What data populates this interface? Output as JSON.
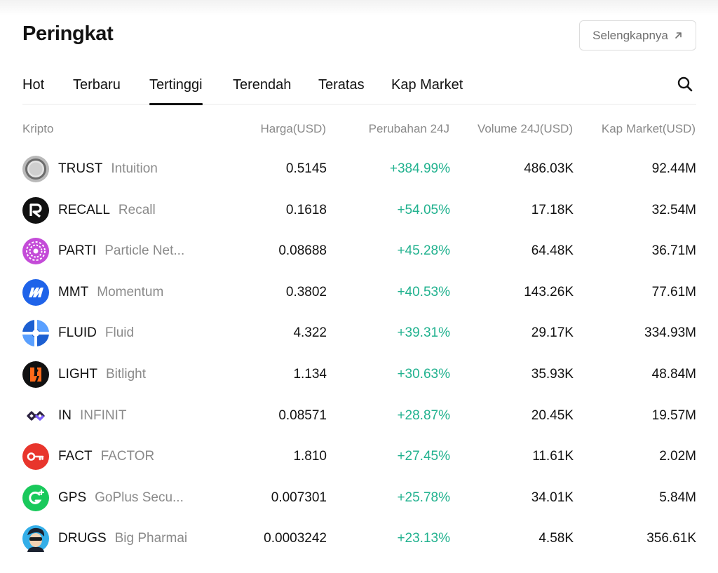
{
  "title": "Peringkat",
  "more_button": "Selengkapnya",
  "tabs": [
    "Hot",
    "Terbaru",
    "Tertinggi",
    "Terendah",
    "Teratas",
    "Kap Market"
  ],
  "active_tab": "Tertinggi",
  "headers": {
    "asset": "Kripto",
    "price": "Harga(USD)",
    "change": "Perubahan 24J",
    "volume": "Volume 24J(USD)",
    "market_cap": "Kap Market(USD)"
  },
  "colors": {
    "positive": "#22b28f",
    "text": "#121212",
    "muted": "#8a8a8a"
  },
  "rows": [
    {
      "symbol": "TRUST",
      "name": "Intuition",
      "price": "0.5145",
      "change": "+384.99%",
      "volume": "486.03K",
      "market_cap": "92.44M",
      "icon": "trust-logo-icon"
    },
    {
      "symbol": "RECALL",
      "name": "Recall",
      "price": "0.1618",
      "change": "+54.05%",
      "volume": "17.18K",
      "market_cap": "32.54M",
      "icon": "recall-logo-icon"
    },
    {
      "symbol": "PARTI",
      "name": "Particle Net...",
      "price": "0.08688",
      "change": "+45.28%",
      "volume": "64.48K",
      "market_cap": "36.71M",
      "icon": "parti-logo-icon"
    },
    {
      "symbol": "MMT",
      "name": "Momentum",
      "price": "0.3802",
      "change": "+40.53%",
      "volume": "143.26K",
      "market_cap": "77.61M",
      "icon": "mmt-logo-icon"
    },
    {
      "symbol": "FLUID",
      "name": "Fluid",
      "price": "4.322",
      "change": "+39.31%",
      "volume": "29.17K",
      "market_cap": "334.93M",
      "icon": "fluid-logo-icon"
    },
    {
      "symbol": "LIGHT",
      "name": "Bitlight",
      "price": "1.134",
      "change": "+30.63%",
      "volume": "35.93K",
      "market_cap": "48.84M",
      "icon": "light-logo-icon"
    },
    {
      "symbol": "IN",
      "name": "INFINIT",
      "price": "0.08571",
      "change": "+28.87%",
      "volume": "20.45K",
      "market_cap": "19.57M",
      "icon": "in-logo-icon"
    },
    {
      "symbol": "FACT",
      "name": "FACTOR",
      "price": "1.810",
      "change": "+27.45%",
      "volume": "11.61K",
      "market_cap": "2.02M",
      "icon": "fact-logo-icon"
    },
    {
      "symbol": "GPS",
      "name": "GoPlus Secu...",
      "price": "0.007301",
      "change": "+25.78%",
      "volume": "34.01K",
      "market_cap": "5.84M",
      "icon": "gps-logo-icon"
    },
    {
      "symbol": "DRUGS",
      "name": "Big Pharmai",
      "price": "0.0003242",
      "change": "+23.13%",
      "volume": "4.58K",
      "market_cap": "356.61K",
      "icon": "drugs-logo-icon"
    }
  ]
}
